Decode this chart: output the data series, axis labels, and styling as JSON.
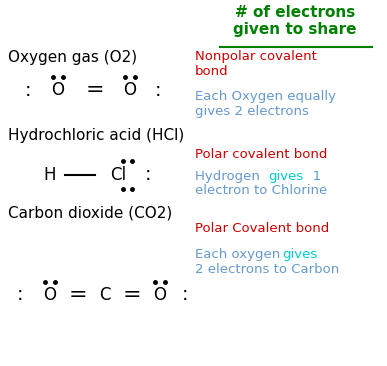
{
  "bg_color": "#ffffff",
  "fig_width": 3.87,
  "fig_height": 3.66,
  "dpi": 100,
  "title_text": "# of electrons\ngiven to share",
  "title_color": "#008000",
  "underline_color": "#008000",
  "sections": [
    {
      "label": "Oxygen gas (O2)",
      "label_color": "#000000",
      "label_fontsize": 11,
      "bond_label1": "Nonpolar covalent\nbond",
      "bond_label1_color": "#cc0000",
      "bond_label2": "Each Oxygen equally\ngives 2 electrons",
      "bond_label2_color": "#6699cc"
    },
    {
      "label": "Hydrochloric acid (HCl)",
      "label_color": "#000000",
      "label_fontsize": 11,
      "bond_label1": "Polar covalent bond",
      "bond_label1_color": "#cc0000",
      "bond_label2_part1": "Hydrogen  ",
      "bond_label2_part2": "gives",
      "bond_label2_part3": "   1\nelectron to Chlorine",
      "bond_label2_color": "#6699cc",
      "bond_label2_gives_color": "#00cccc"
    },
    {
      "label": "Carbon dioxide (CO2)",
      "label_color": "#000000",
      "label_fontsize": 11,
      "bond_label1": "Polar Covalent bond",
      "bond_label1_color": "#cc0000",
      "bond_label2_part1": "Each oxygen  ",
      "bond_label2_part2": "gives",
      "bond_label2_part3": "\n2 electrons to Carbon",
      "bond_label2_color": "#6699cc",
      "bond_label2_gives_color": "#00cccc"
    }
  ],
  "dot_color": "#000000",
  "bond_color": "#000000",
  "element_fontsize": 11,
  "element_color": "#000000"
}
